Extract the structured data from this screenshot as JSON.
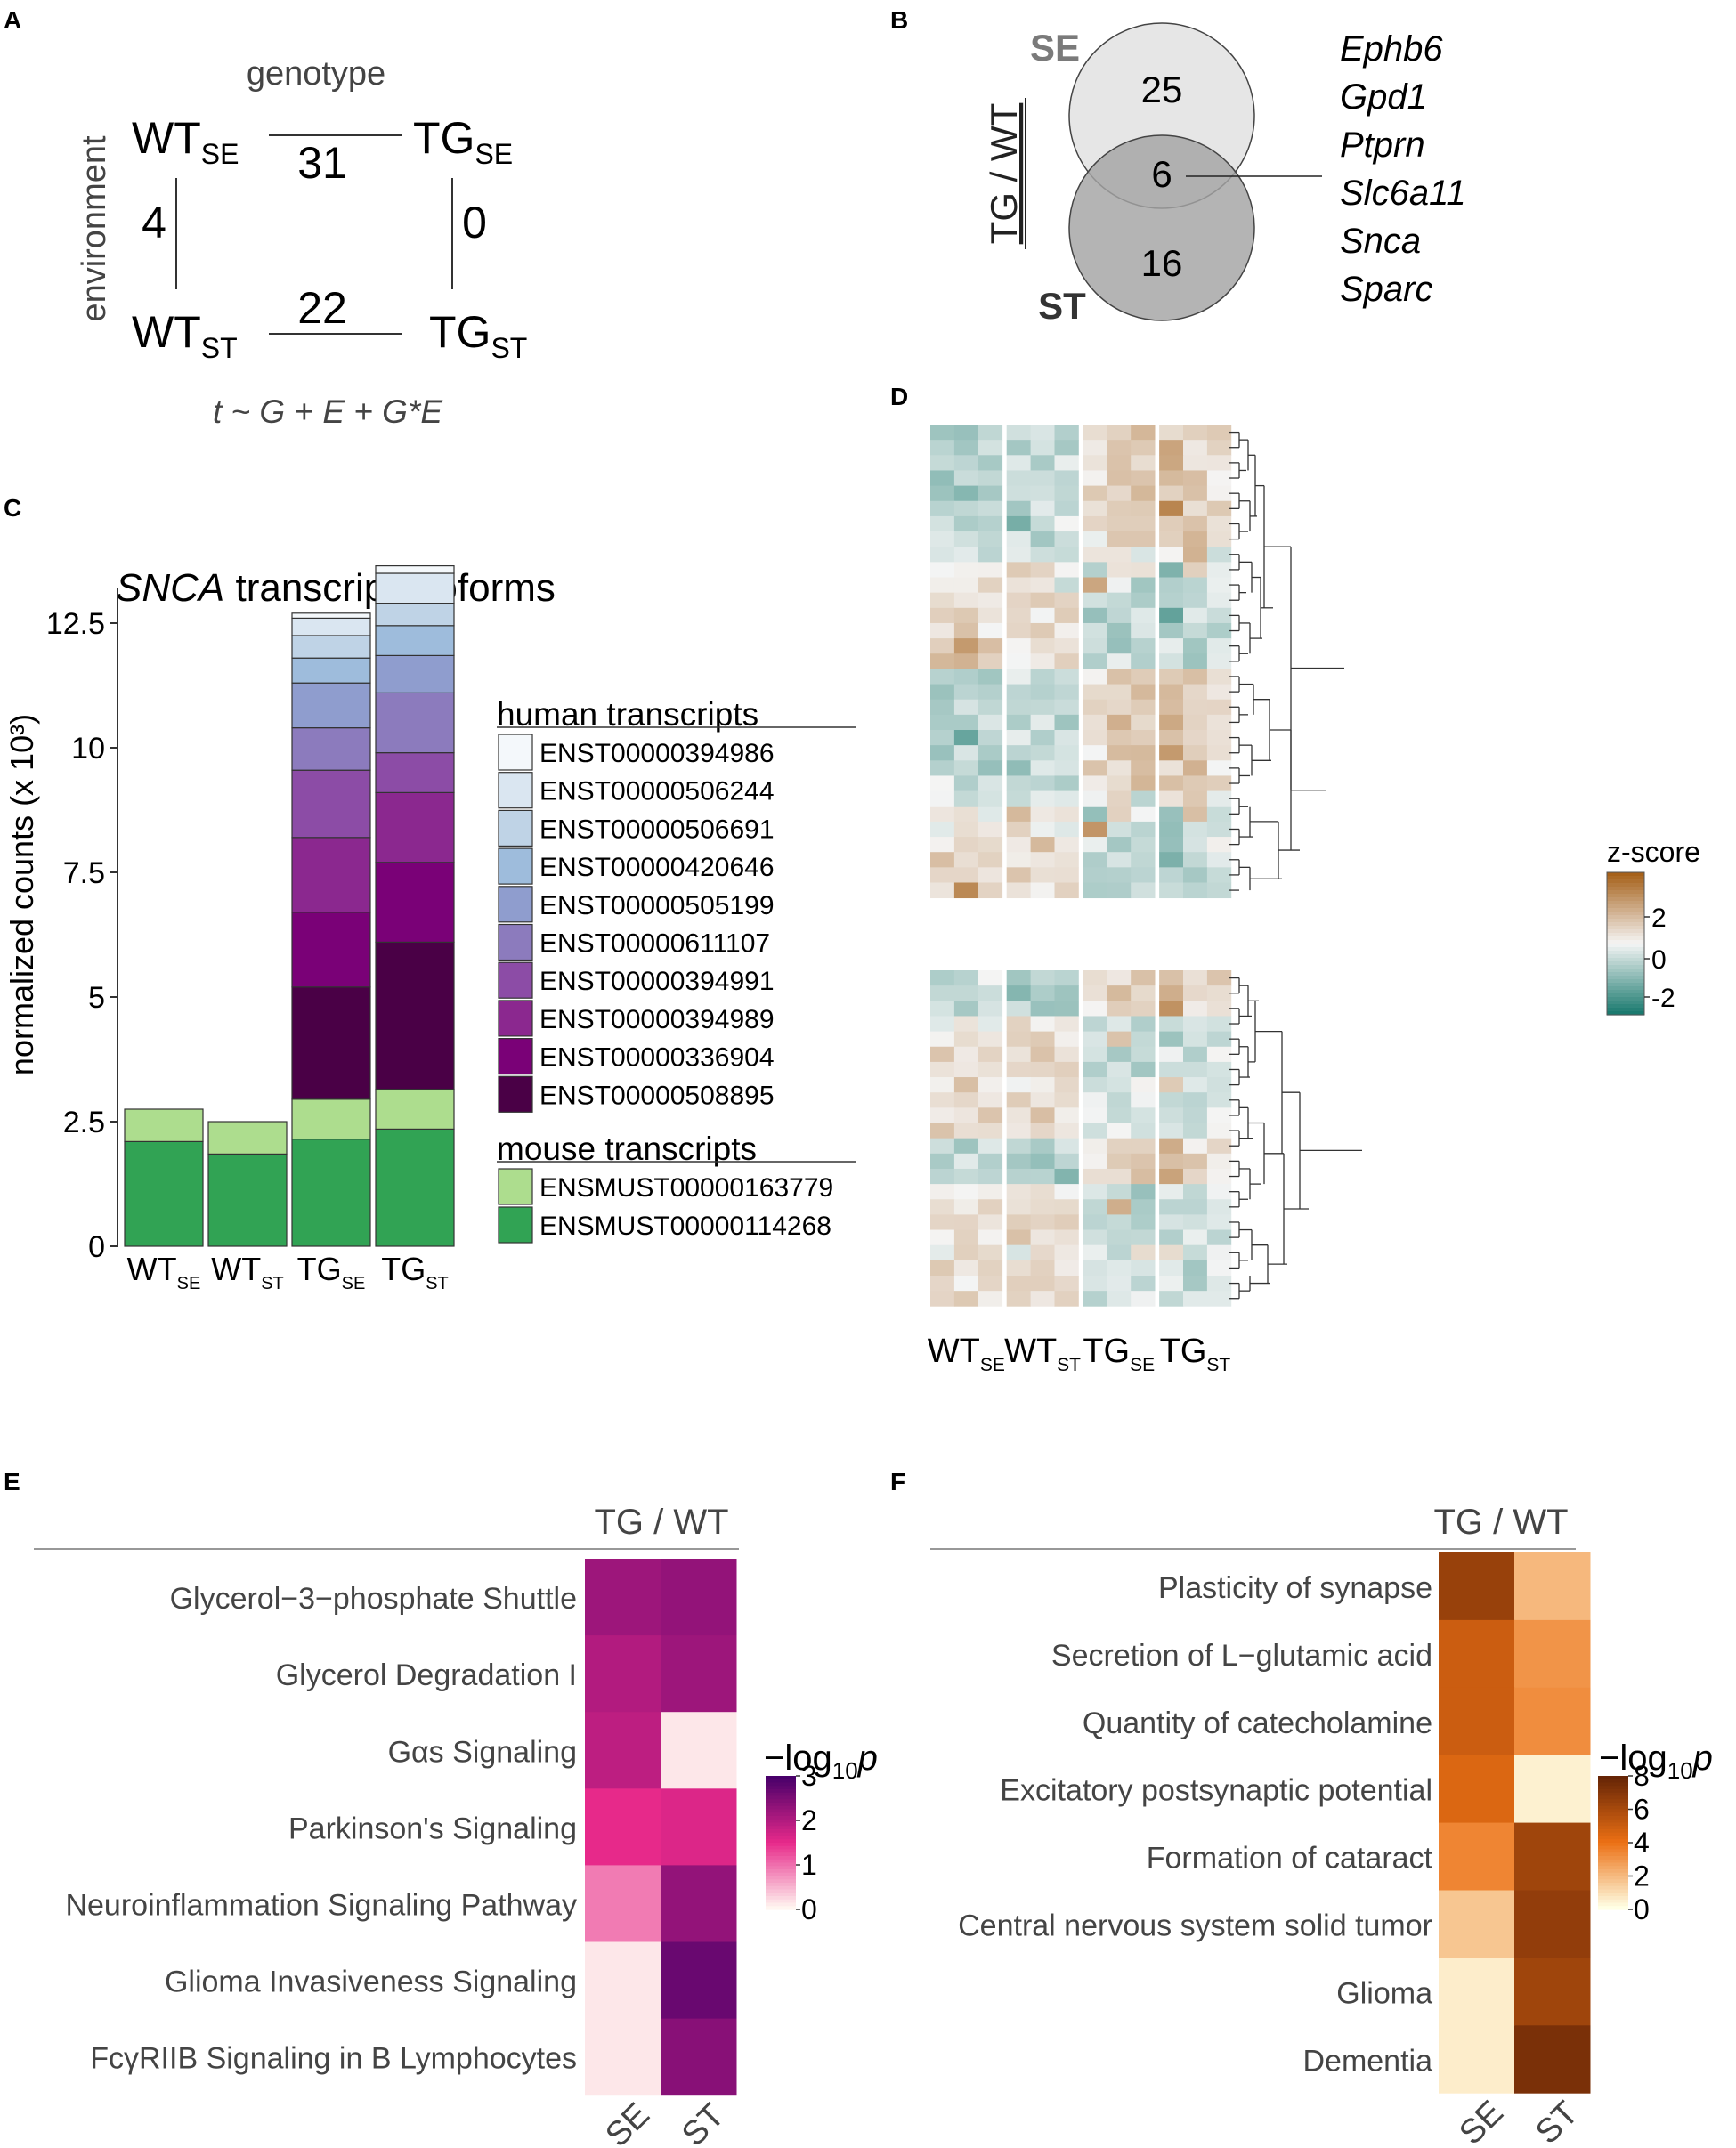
{
  "panel_labels": {
    "a": "A",
    "b": "B",
    "c": "C",
    "d": "D",
    "e": "E",
    "f": "F"
  },
  "panel_a": {
    "title": "genotype",
    "side_label": "environment",
    "formula": "t ~ G + E + G*E",
    "nodes": {
      "wt_se": {
        "main": "WT",
        "sub": "SE"
      },
      "tg_se": {
        "main": "TG",
        "sub": "SE"
      },
      "wt_st": {
        "main": "WT",
        "sub": "ST"
      },
      "tg_st": {
        "main": "TG",
        "sub": "ST"
      }
    },
    "edges": {
      "top": "31",
      "bottom": "22",
      "left": "4",
      "right": "0"
    }
  },
  "panel_b": {
    "se_label": "SE",
    "st_label": "ST",
    "axis_label": "TG / WT",
    "se_only": "25",
    "overlap": "6",
    "st_only": "16",
    "genes": [
      "Ephb6",
      "Gpd1",
      "Ptprn",
      "Slc6a11",
      "Snca",
      "Sparc"
    ]
  },
  "chart_data": [
    {
      "type": "bar",
      "title": "transcript isoforms",
      "title_italic": "SNCA",
      "ylabel": "normalized counts (x 10³)",
      "ytick_labels": [
        "0",
        "2.5",
        "5",
        "7.5",
        "10",
        "12.5"
      ],
      "ylim": [
        0,
        13.2
      ],
      "categories": [
        {
          "main": "WT",
          "sub": "SE"
        },
        {
          "main": "WT",
          "sub": "ST"
        },
        {
          "main": "TG",
          "sub": "SE"
        },
        {
          "main": "TG",
          "sub": "ST"
        }
      ],
      "legend_human_title": "human transcripts",
      "legend_mouse_title": "mouse transcripts",
      "series": [
        {
          "name": "ENSMUST00000114268",
          "group": "mouse",
          "color": "#31a354",
          "values": [
            2.1,
            1.85,
            2.15,
            2.35
          ]
        },
        {
          "name": "ENSMUST00000163779",
          "group": "mouse",
          "color": "#addd8e",
          "values": [
            0.65,
            0.65,
            0.8,
            0.8
          ]
        },
        {
          "name": "ENST00000508895",
          "group": "human",
          "color": "#4a0046",
          "values": [
            0,
            0,
            2.25,
            2.95
          ]
        },
        {
          "name": "ENST00000336904",
          "group": "human",
          "color": "#7a0177",
          "values": [
            0,
            0,
            1.5,
            1.6
          ]
        },
        {
          "name": "ENST00000394989",
          "group": "human",
          "color": "#8b288f",
          "values": [
            0,
            0,
            1.5,
            1.4
          ]
        },
        {
          "name": "ENST00000394991",
          "group": "human",
          "color": "#8c4ca6",
          "values": [
            0,
            0,
            1.35,
            0.8
          ]
        },
        {
          "name": "ENST00000611107",
          "group": "human",
          "color": "#8c7bbd",
          "values": [
            0,
            0,
            0.85,
            1.2
          ]
        },
        {
          "name": "ENST00000505199",
          "group": "human",
          "color": "#8f9dce",
          "values": [
            0,
            0,
            0.9,
            0.75
          ]
        },
        {
          "name": "ENST00000420646",
          "group": "human",
          "color": "#9ebcdc",
          "values": [
            0,
            0,
            0.5,
            0.6
          ]
        },
        {
          "name": "ENST00000506691",
          "group": "human",
          "color": "#bfd3e6",
          "values": [
            0,
            0,
            0.45,
            0.45
          ]
        },
        {
          "name": "ENST00000506244",
          "group": "human",
          "color": "#dae6f1",
          "values": [
            0,
            0,
            0.35,
            0.6
          ]
        },
        {
          "name": "ENST00000394986",
          "group": "human",
          "color": "#f4f8fb",
          "values": [
            0,
            0,
            0.1,
            0.15
          ]
        }
      ]
    },
    {
      "type": "heatmap",
      "title": "",
      "legend_title": "z-score",
      "legend_ticks": [
        "2",
        "0",
        "-2"
      ],
      "color_low": "#1b7a6f",
      "color_mid": "#f5f5f5",
      "color_high": "#a6611a",
      "columns": [
        {
          "main": "WT",
          "sub": "SE"
        },
        {
          "main": "WT",
          "sub": "ST"
        },
        {
          "main": "TG",
          "sub": "SE"
        },
        {
          "main": "TG",
          "sub": "ST"
        }
      ],
      "rows_top_block": 31,
      "rows_bottom_block": 22,
      "columns_per_group": 3,
      "top_block_pattern": [
        [
          -0.8,
          -1.2,
          -1.0,
          -0.4,
          -0.6,
          -0.7,
          0.3,
          0.9,
          1.1,
          0.8,
          0.7,
          0.5
        ],
        [
          -1.0,
          -0.9,
          -0.6,
          -0.8,
          -0.5,
          -0.7,
          0.2,
          0.6,
          0.9,
          1.3,
          0.4,
          0.5
        ],
        [
          -0.7,
          -0.4,
          -1.0,
          -0.6,
          -0.9,
          -0.4,
          0.5,
          0.8,
          0.7,
          1.4,
          0.6,
          0.3
        ],
        [
          -1.2,
          -0.8,
          -0.5,
          -0.7,
          -0.3,
          -0.8,
          0.4,
          1.0,
          0.6,
          1.2,
          0.8,
          0.2
        ],
        [
          -0.9,
          -1.5,
          -0.7,
          -0.5,
          -0.8,
          -0.6,
          0.6,
          0.7,
          1.0,
          0.9,
          0.9,
          0.4
        ],
        [
          -1.1,
          -0.6,
          -0.8,
          -0.9,
          -0.4,
          -0.5,
          0.3,
          1.1,
          0.8,
          1.8,
          0.5,
          0.6
        ],
        [
          -0.6,
          -0.7,
          -0.9,
          -1.3,
          -0.6,
          -0.3,
          0.7,
          0.5,
          0.9,
          0.6,
          1.2,
          0.3
        ],
        [
          -0.3,
          -0.8,
          -0.6,
          -0.5,
          -0.9,
          -0.7,
          0.1,
          0.8,
          1.2,
          0.7,
          0.9,
          0.5
        ],
        [
          -0.2,
          -0.4,
          -0.5,
          -0.3,
          -0.2,
          -0.6,
          0.0,
          0.4,
          -0.6,
          0.2,
          1.1,
          -0.3
        ],
        [
          0.3,
          0.1,
          -0.2,
          0.9,
          0.4,
          0.2,
          -1.0,
          0.6,
          0.3,
          -1.2,
          0.7,
          -0.5
        ],
        [
          -0.1,
          0.3,
          0.5,
          0.6,
          0.2,
          -0.3,
          1.5,
          -0.4,
          -1.0,
          -1.1,
          -0.6,
          -0.3
        ],
        [
          0.4,
          0.6,
          0.2,
          0.3,
          0.9,
          0.4,
          -0.3,
          -0.8,
          -0.7,
          -0.9,
          -0.4,
          -0.2
        ],
        [
          0.8,
          0.6,
          0.5,
          0.4,
          0.2,
          0.7,
          -0.9,
          -0.7,
          -0.6,
          -1.8,
          -0.5,
          -0.4
        ],
        [
          0.5,
          0.9,
          0.3,
          0.6,
          0.5,
          0.2,
          -0.7,
          -1.0,
          -0.5,
          -0.8,
          -0.7,
          -0.6
        ],
        [
          0.4,
          1.8,
          0.8,
          0.2,
          0.3,
          0.6,
          -0.6,
          -0.9,
          -0.8,
          -0.5,
          -1.0,
          -0.5
        ],
        [
          1.0,
          1.5,
          0.6,
          0.3,
          0.2,
          0.4,
          -0.8,
          -0.4,
          -0.7,
          -0.6,
          -0.9,
          -0.3
        ]
      ],
      "bottom_block_pattern": [
        [
          -0.6,
          -0.8,
          -0.3,
          -1.0,
          -0.9,
          -0.6,
          0.3,
          0.5,
          0.9,
          1.3,
          0.4,
          0.6
        ],
        [
          -0.9,
          -0.5,
          -0.7,
          -1.2,
          -1.0,
          -0.8,
          0.4,
          0.8,
          0.6,
          1.1,
          0.7,
          0.3
        ],
        [
          -0.5,
          -0.7,
          -0.4,
          -0.8,
          -1.1,
          -1.4,
          0.2,
          0.6,
          0.9,
          1.8,
          0.5,
          0.4
        ],
        [
          -0.2,
          0.1,
          -0.1,
          0.5,
          0.3,
          0.2,
          -0.4,
          -0.3,
          -1.2,
          -0.5,
          -0.6,
          -0.3
        ],
        [
          0.3,
          0.4,
          0.6,
          0.7,
          0.5,
          0.2,
          -0.6,
          1.1,
          -0.8,
          -0.9,
          -0.5,
          -0.4
        ],
        [
          0.6,
          0.3,
          0.4,
          0.5,
          0.8,
          0.6,
          -0.5,
          -0.7,
          -0.6,
          -0.4,
          -0.8,
          -0.2
        ],
        [
          0.2,
          0.5,
          0.3,
          0.9,
          0.6,
          0.4,
          -0.8,
          -0.6,
          -0.9,
          -0.7,
          -0.3,
          -0.5
        ],
        [
          0.1,
          0.7,
          0.2,
          -0.3,
          0.3,
          0.4,
          -0.3,
          -0.5,
          0.4,
          0.8,
          -0.6,
          -0.4
        ],
        [
          0.6,
          0.4,
          0.5,
          0.7,
          0.6,
          0.5,
          -0.4,
          -0.6,
          -0.3,
          -0.5,
          -0.9,
          -0.2
        ],
        [
          0.5,
          0.3,
          0.6,
          0.4,
          0.8,
          0.3,
          -0.2,
          -0.4,
          -0.5,
          -0.2,
          -0.7,
          -0.3
        ],
        [
          0.7,
          0.6,
          0.3,
          0.5,
          0.5,
          0.6,
          -0.5,
          -0.3,
          -0.4,
          -0.6,
          -0.5,
          -0.1
        ]
      ]
    },
    {
      "type": "heatmap",
      "title": "TG / WT",
      "legend_title": "−log",
      "legend_sub": "10",
      "legend_p": "p",
      "legend_ticks": [
        "3",
        "2",
        "1",
        "0"
      ],
      "legend_max": 3,
      "color_low": "#fff5f0",
      "color_mid": "#e7298a",
      "color_high": "#49006a",
      "columns": [
        "SE",
        "ST"
      ],
      "rows": [
        "Glycerol−3−phosphate Shuttle",
        "Glycerol Degradation I",
        "Gαs Signaling",
        "Parkinson's Signaling",
        "Neuroinflammation Signaling Pathway",
        "Glioma Invasiveness Signaling",
        "FcγRIIB Signaling in B Lymphocytes"
      ],
      "values": [
        [
          2.2,
          2.3
        ],
        [
          2.0,
          2.2
        ],
        [
          1.9,
          0.1
        ],
        [
          1.5,
          1.6
        ],
        [
          0.9,
          2.3
        ],
        [
          0.1,
          2.7
        ],
        [
          0.1,
          2.4
        ]
      ]
    },
    {
      "type": "heatmap",
      "title": "TG / WT",
      "legend_title": "−log",
      "legend_sub": "10",
      "legend_p": "p",
      "legend_ticks": [
        "8",
        "6",
        "4",
        "2",
        "0"
      ],
      "legend_max": 8,
      "color_low": "#ffffe5",
      "color_mid": "#ec7014",
      "color_high": "#662506",
      "columns": [
        "SE",
        "ST"
      ],
      "rows": [
        "Plasticity of synapse",
        "Secretion of L−glutamic acid",
        "Quantity of catecholamine",
        "Excitatory postsynaptic potential",
        "Formation of cataract",
        "Central nervous system solid tumor",
        "Glioma",
        "Dementia"
      ],
      "values": [
        [
          6.5,
          2.0
        ],
        [
          5.0,
          3.0
        ],
        [
          5.0,
          3.2
        ],
        [
          4.5,
          0.4
        ],
        [
          3.4,
          6.3
        ],
        [
          1.6,
          6.7
        ],
        [
          0.5,
          6.3
        ],
        [
          0.5,
          7.4
        ]
      ]
    }
  ]
}
